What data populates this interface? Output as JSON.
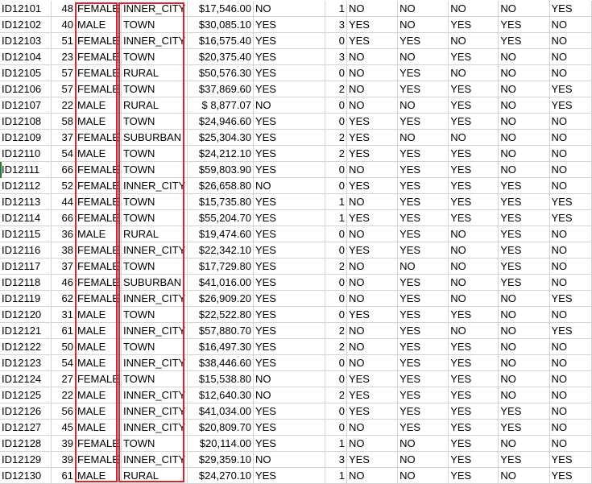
{
  "highlight_color": "#d9232e",
  "rows": [
    [
      "ID12101",
      "48",
      "FEMALE",
      "INNER_CITY",
      "$17,546.00",
      "NO",
      "1",
      "NO",
      "NO",
      "NO",
      "NO",
      "YES"
    ],
    [
      "ID12102",
      "40",
      "MALE",
      "TOWN",
      "$30,085.10",
      "YES",
      "3",
      "YES",
      "NO",
      "YES",
      "YES",
      "NO"
    ],
    [
      "ID12103",
      "51",
      "FEMALE",
      "INNER_CITY",
      "$16,575.40",
      "YES",
      "0",
      "YES",
      "YES",
      "NO",
      "YES",
      "NO"
    ],
    [
      "ID12104",
      "23",
      "FEMALE",
      "TOWN",
      "$20,375.40",
      "YES",
      "3",
      "NO",
      "NO",
      "YES",
      "NO",
      "NO"
    ],
    [
      "ID12105",
      "57",
      "FEMALE",
      "RURAL",
      "$50,576.30",
      "YES",
      "0",
      "NO",
      "YES",
      "NO",
      "NO",
      "NO"
    ],
    [
      "ID12106",
      "57",
      "FEMALE",
      "TOWN",
      "$37,869.60",
      "YES",
      "2",
      "NO",
      "YES",
      "YES",
      "NO",
      "YES"
    ],
    [
      "ID12107",
      "22",
      "MALE",
      "RURAL",
      "$  8,877.07",
      "NO",
      "0",
      "NO",
      "NO",
      "YES",
      "NO",
      "YES"
    ],
    [
      "ID12108",
      "58",
      "MALE",
      "TOWN",
      "$24,946.60",
      "YES",
      "0",
      "YES",
      "YES",
      "YES",
      "NO",
      "NO"
    ],
    [
      "ID12109",
      "37",
      "FEMALE",
      "SUBURBAN",
      "$25,304.30",
      "YES",
      "2",
      "YES",
      "NO",
      "NO",
      "NO",
      "NO"
    ],
    [
      "ID12110",
      "54",
      "MALE",
      "TOWN",
      "$24,212.10",
      "YES",
      "2",
      "YES",
      "YES",
      "YES",
      "NO",
      "NO"
    ],
    [
      "ID12111",
      "66",
      "FEMALE",
      "TOWN",
      "$59,803.90",
      "YES",
      "0",
      "NO",
      "YES",
      "YES",
      "NO",
      "NO"
    ],
    [
      "ID12112",
      "52",
      "FEMALE",
      "INNER_CITY",
      "$26,658.80",
      "NO",
      "0",
      "YES",
      "YES",
      "YES",
      "YES",
      "NO"
    ],
    [
      "ID12113",
      "44",
      "FEMALE",
      "TOWN",
      "$15,735.80",
      "YES",
      "1",
      "NO",
      "YES",
      "YES",
      "YES",
      "YES"
    ],
    [
      "ID12114",
      "66",
      "FEMALE",
      "TOWN",
      "$55,204.70",
      "YES",
      "1",
      "YES",
      "YES",
      "YES",
      "YES",
      "YES"
    ],
    [
      "ID12115",
      "36",
      "MALE",
      "RURAL",
      "$19,474.60",
      "YES",
      "0",
      "NO",
      "YES",
      "NO",
      "YES",
      "NO"
    ],
    [
      "ID12116",
      "38",
      "FEMALE",
      "INNER_CITY",
      "$22,342.10",
      "YES",
      "0",
      "YES",
      "YES",
      "NO",
      "YES",
      "NO"
    ],
    [
      "ID12117",
      "37",
      "FEMALE",
      "TOWN",
      "$17,729.80",
      "YES",
      "2",
      "NO",
      "NO",
      "NO",
      "YES",
      "NO"
    ],
    [
      "ID12118",
      "46",
      "FEMALE",
      "SUBURBAN",
      "$41,016.00",
      "YES",
      "0",
      "NO",
      "YES",
      "NO",
      "YES",
      "NO"
    ],
    [
      "ID12119",
      "62",
      "FEMALE",
      "INNER_CITY",
      "$26,909.20",
      "YES",
      "0",
      "NO",
      "YES",
      "NO",
      "NO",
      "YES"
    ],
    [
      "ID12120",
      "31",
      "MALE",
      "TOWN",
      "$22,522.80",
      "YES",
      "0",
      "YES",
      "YES",
      "YES",
      "NO",
      "NO"
    ],
    [
      "ID12121",
      "61",
      "MALE",
      "INNER_CITY",
      "$57,880.70",
      "YES",
      "2",
      "NO",
      "YES",
      "NO",
      "NO",
      "YES"
    ],
    [
      "ID12122",
      "50",
      "MALE",
      "TOWN",
      "$16,497.30",
      "YES",
      "2",
      "NO",
      "YES",
      "YES",
      "NO",
      "NO"
    ],
    [
      "ID12123",
      "54",
      "MALE",
      "INNER_CITY",
      "$38,446.60",
      "YES",
      "0",
      "NO",
      "YES",
      "YES",
      "NO",
      "NO"
    ],
    [
      "ID12124",
      "27",
      "FEMALE",
      "TOWN",
      "$15,538.80",
      "NO",
      "0",
      "YES",
      "YES",
      "YES",
      "NO",
      "NO"
    ],
    [
      "ID12125",
      "22",
      "MALE",
      "INNER_CITY",
      "$12,640.30",
      "NO",
      "2",
      "YES",
      "YES",
      "YES",
      "NO",
      "NO"
    ],
    [
      "ID12126",
      "56",
      "MALE",
      "INNER_CITY",
      "$41,034.00",
      "YES",
      "0",
      "YES",
      "YES",
      "YES",
      "YES",
      "NO"
    ],
    [
      "ID12127",
      "45",
      "MALE",
      "INNER_CITY",
      "$20,809.70",
      "YES",
      "0",
      "NO",
      "YES",
      "YES",
      "YES",
      "NO"
    ],
    [
      "ID12128",
      "39",
      "FEMALE",
      "TOWN",
      "$20,114.00",
      "YES",
      "1",
      "NO",
      "NO",
      "YES",
      "NO",
      "NO"
    ],
    [
      "ID12129",
      "39",
      "FEMALE",
      "INNER_CITY",
      "$29,359.10",
      "NO",
      "3",
      "YES",
      "NO",
      "YES",
      "YES",
      "YES"
    ],
    [
      "ID12130",
      "61",
      "MALE",
      "RURAL",
      "$24,270.10",
      "YES",
      "1",
      "NO",
      "NO",
      "YES",
      "NO",
      "YES"
    ]
  ]
}
